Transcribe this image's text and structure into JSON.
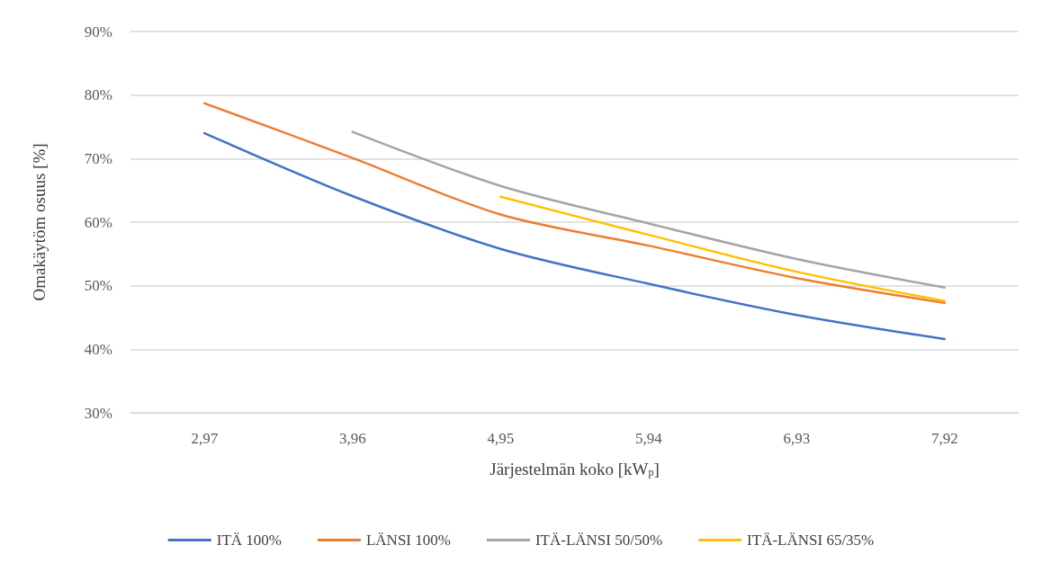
{
  "chart_data": {
    "type": "line",
    "xlabel": "Järjestelmän koko [kW$_{p}$]",
    "ylabel": "Omakäytöm osuus [%]",
    "categories": [
      "2,97",
      "3,96",
      "4,95",
      "5,94",
      "6,93",
      "7,92"
    ],
    "series": [
      {
        "name": "ITÄ 100%",
        "color": "#4472c4",
        "values": [
          74.0,
          64.1,
          55.8,
          50.3,
          45.4,
          41.6
        ]
      },
      {
        "name": "LÄNSI 100%",
        "color": "#ed7d31",
        "values": [
          78.7,
          70.1,
          61.2,
          56.3,
          51.2,
          47.3
        ]
      },
      {
        "name": "ITÄ-LÄNSI 50/50%",
        "color": "#a5a5a5",
        "values": [
          null,
          74.2,
          65.7,
          59.8,
          54.2,
          49.7
        ]
      },
      {
        "name": "ITÄ-LÄNSI 65/35%",
        "color": "#ffc000",
        "values": [
          null,
          null,
          64.0,
          58.0,
          52.2,
          47.6
        ]
      }
    ],
    "ylim": [
      30,
      90
    ],
    "yticks": [
      {
        "value": 30,
        "label": "30%"
      },
      {
        "value": 40,
        "label": "40%"
      },
      {
        "value": 50,
        "label": "50%"
      },
      {
        "value": 60,
        "label": "60%"
      },
      {
        "value": 70,
        "label": "70%"
      },
      {
        "value": 80,
        "label": "80%"
      },
      {
        "value": 90,
        "label": "90%"
      }
    ],
    "grid": "y",
    "legend": "bottom",
    "marker": "none",
    "line_style": "solid"
  }
}
